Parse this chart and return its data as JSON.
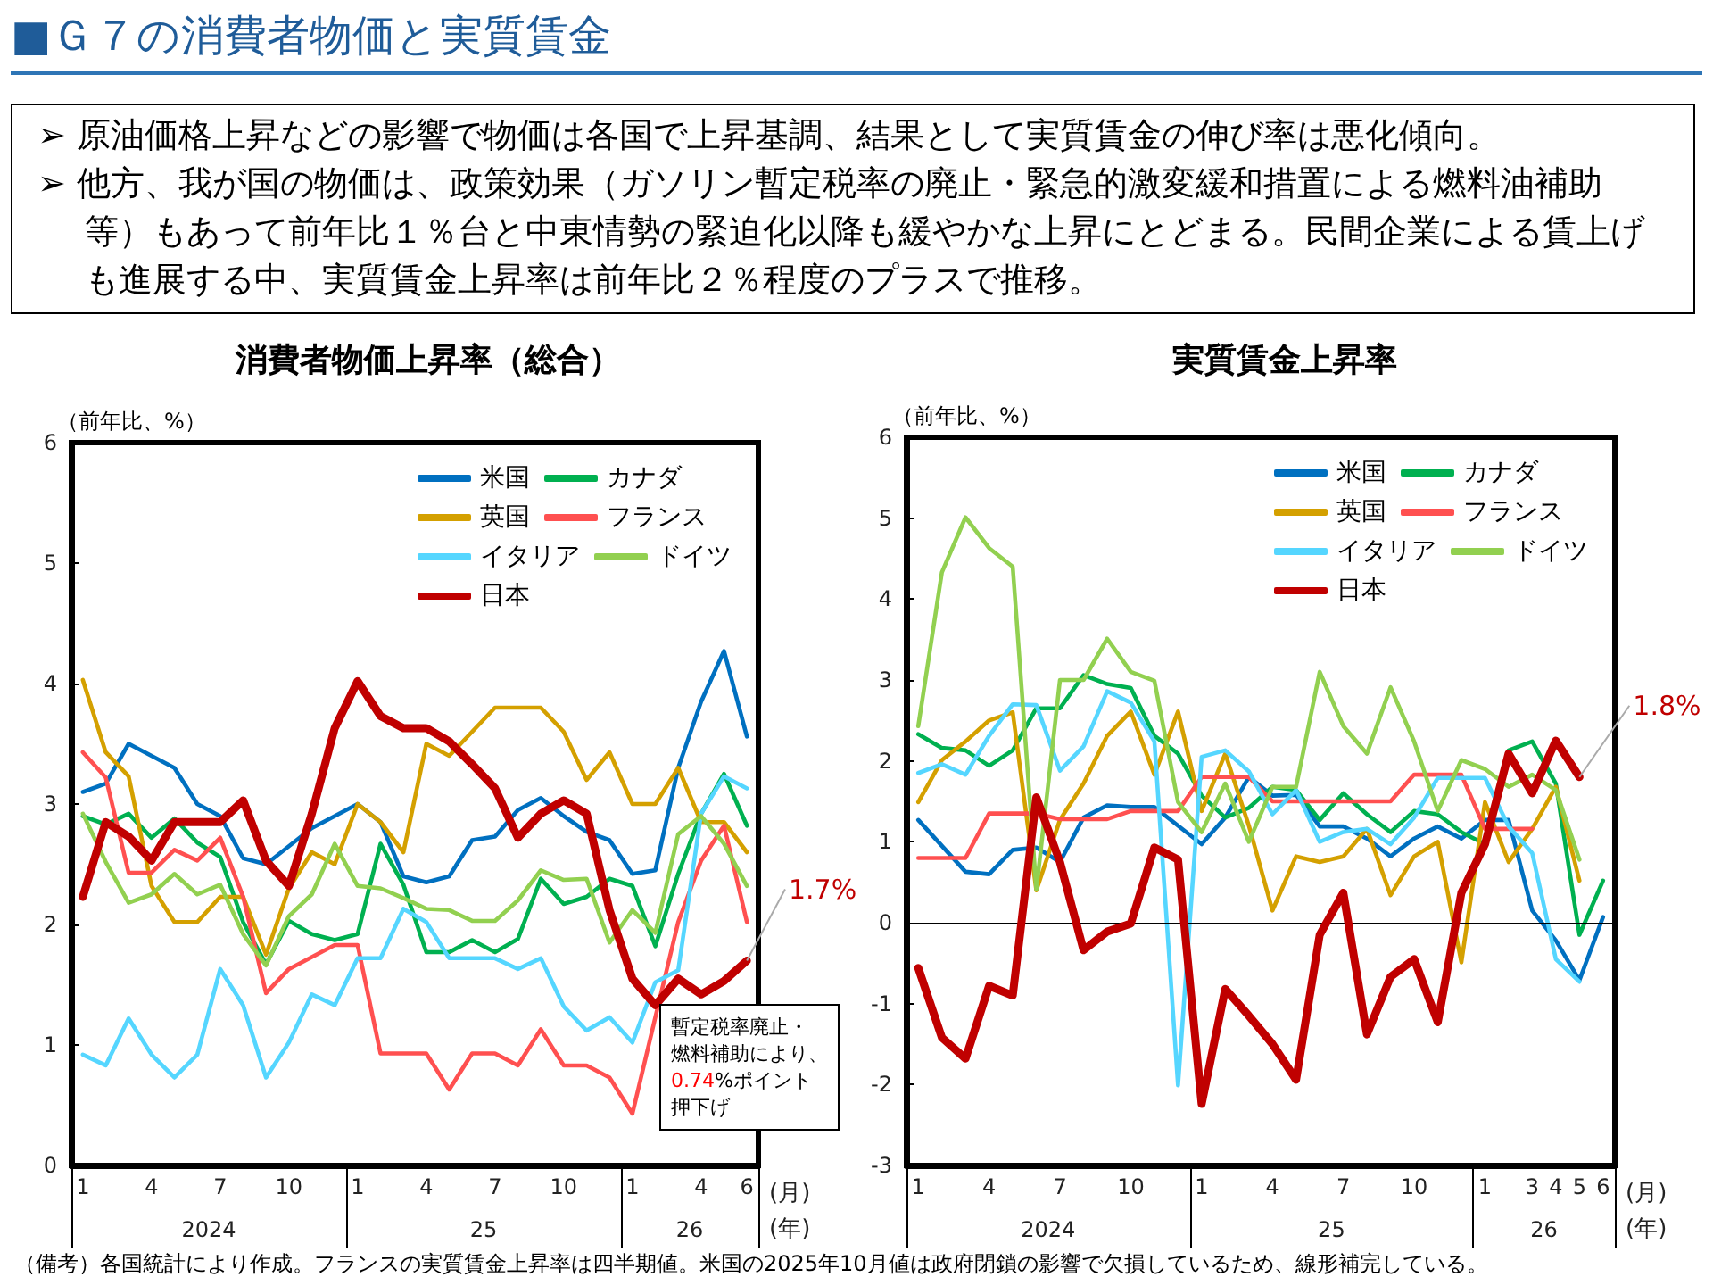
{
  "chart_data": [
    {
      "type": "line",
      "title": "消費者物価上昇率（総合）",
      "ylabel": "（前年比、%）",
      "xlabel": "(月)\n(年)",
      "categories": [
        "1",
        null,
        null,
        "4",
        null,
        null,
        "7",
        null,
        null,
        "10",
        null,
        null,
        "1",
        null,
        null,
        "4",
        null,
        null,
        "7",
        null,
        null,
        "10",
        null,
        null,
        "1",
        null,
        null,
        "4",
        null,
        "6"
      ],
      "series": [
        {
          "name": "米国",
          "color": "#0070c0",
          "values": [
            3.1,
            3.17,
            3.5,
            3.4,
            3.3,
            3.0,
            2.9,
            2.55,
            2.5,
            2.65,
            2.8,
            2.9,
            3.0,
            2.85,
            2.4,
            2.35,
            2.4,
            2.7,
            2.73,
            2.95,
            3.05,
            2.9,
            2.77,
            2.7,
            2.42,
            2.45,
            3.3,
            3.85,
            4.27,
            3.56
          ]
        },
        {
          "name": "カナダ",
          "color": "#00b050",
          "values": [
            2.9,
            2.83,
            2.92,
            2.72,
            2.88,
            2.68,
            2.56,
            2.02,
            1.67,
            2.03,
            1.92,
            1.87,
            1.92,
            2.67,
            2.33,
            1.77,
            1.77,
            1.87,
            1.77,
            1.88,
            2.38,
            2.17,
            2.23,
            2.38,
            2.32,
            1.82,
            2.42,
            2.92,
            3.25,
            2.82
          ]
        },
        {
          "name": "英国",
          "color": "#d4a000",
          "values": [
            4.03,
            3.43,
            3.23,
            2.32,
            2.02,
            2.02,
            2.23,
            2.23,
            1.75,
            2.3,
            2.6,
            2.5,
            3.0,
            2.85,
            2.6,
            3.5,
            3.4,
            3.6,
            3.8,
            3.8,
            3.8,
            3.6,
            3.2,
            3.43,
            3.0,
            3.0,
            3.3,
            2.85,
            2.85,
            2.6
          ]
        },
        {
          "name": "フランス",
          "color": "#ff5050",
          "values": [
            3.43,
            3.22,
            2.43,
            2.43,
            2.62,
            2.53,
            2.72,
            2.23,
            1.43,
            1.63,
            1.73,
            1.83,
            1.83,
            0.93,
            0.93,
            0.93,
            0.63,
            0.93,
            0.93,
            0.83,
            1.13,
            0.83,
            0.83,
            0.73,
            0.43,
            1.23,
            2.02,
            2.53,
            2.82,
            2.02
          ]
        },
        {
          "name": "イタリア",
          "color": "#55d6ff",
          "values": [
            0.92,
            0.83,
            1.22,
            0.92,
            0.73,
            0.92,
            1.63,
            1.33,
            0.73,
            1.02,
            1.42,
            1.33,
            1.72,
            1.72,
            2.13,
            2.02,
            1.72,
            1.72,
            1.72,
            1.63,
            1.72,
            1.32,
            1.12,
            1.23,
            1.02,
            1.52,
            1.62,
            2.92,
            3.23,
            3.13
          ]
        },
        {
          "name": "ドイツ",
          "color": "#92d050",
          "values": [
            2.92,
            2.52,
            2.18,
            2.25,
            2.42,
            2.25,
            2.33,
            1.92,
            1.66,
            2.07,
            2.25,
            2.67,
            2.32,
            2.3,
            2.22,
            2.13,
            2.12,
            2.03,
            2.03,
            2.2,
            2.45,
            2.37,
            2.38,
            1.85,
            2.12,
            1.93,
            2.75,
            2.9,
            2.67,
            2.32
          ]
        },
        {
          "name": "日本",
          "color": "#c00000",
          "values": [
            2.23,
            2.85,
            2.73,
            2.53,
            2.85,
            2.85,
            2.85,
            3.03,
            2.53,
            2.32,
            2.92,
            3.63,
            4.02,
            3.73,
            3.63,
            3.63,
            3.52,
            3.33,
            3.13,
            2.72,
            2.92,
            3.03,
            2.92,
            2.12,
            1.55,
            1.33,
            1.55,
            1.42,
            1.53,
            1.7
          ]
        }
      ],
      "ylim": [
        0,
        6
      ],
      "yticks": [
        0,
        1,
        2,
        3,
        4,
        5,
        6
      ],
      "legend": "top right",
      "annotations": [
        "■Ｇ７の消費者物価と実質賃金",
        "➢ 原油価格上昇などの影響で物価は各国で上昇基調、結果として実質賃金の伸び率は悪化傾向。\n➢ 他方、我が国の物価は、政策効果（ガソリン暫定税率の廃止・緊急的激変緩和措置による燃料油補助等）もあって前年比１％台と中東情勢の緊迫化以降も緩やかな上昇にとどまる。民間企業による賃上げも進展する中、実質賃金上昇率は前年比２％程度のプラスで推移。",
        "暫定税率廃止・",
        "燃料補助により、",
        "0.74%ポイント",
        "押下げ",
        "2024",
        "25",
        "26",
        {
          "text": "1.7%",
          "x": "6",
          "y": 1.7
        }
      ]
    },
    {
      "type": "line",
      "title": "実質賃金上昇率",
      "ylabel": "（前年比、%）",
      "xlabel": "(月)\n(年)",
      "categories": [
        "1",
        null,
        null,
        "4",
        null,
        null,
        "7",
        null,
        null,
        "10",
        null,
        null,
        "1",
        null,
        null,
        "4",
        null,
        null,
        "7",
        null,
        null,
        "10",
        null,
        null,
        "1",
        null,
        "3",
        "4",
        "5",
        "6"
      ],
      "series": [
        {
          "name": "米国",
          "color": "#0070c0",
          "values": [
            1.27,
            0.95,
            0.63,
            0.6,
            0.9,
            0.93,
            0.75,
            1.3,
            1.45,
            1.43,
            1.43,
            1.2,
            0.97,
            1.3,
            1.8,
            1.57,
            1.58,
            1.19,
            1.19,
            1.04,
            0.82,
            1.04,
            1.19,
            1.04,
            1.27,
            1.27,
            0.15,
            -0.22,
            -0.71,
            0.07
          ]
        },
        {
          "name": "カナダ",
          "color": "#00b050",
          "values": [
            2.33,
            2.16,
            2.13,
            1.94,
            2.13,
            2.65,
            2.65,
            3.06,
            2.95,
            2.9,
            2.31,
            2.09,
            1.57,
            1.3,
            1.42,
            1.68,
            1.64,
            1.27,
            1.6,
            1.34,
            1.12,
            1.38,
            1.34,
            1.12,
            0.97,
            2.13,
            2.24,
            1.72,
            -0.15,
            0.52
          ]
        },
        {
          "name": "英国",
          "color": "#d4a000",
          "values": [
            1.49,
            2.01,
            2.24,
            2.5,
            2.6,
            0.4,
            1.27,
            1.72,
            2.31,
            2.61,
            1.83,
            2.61,
            1.38,
            2.09,
            1.2,
            0.15,
            0.82,
            0.75,
            0.82,
            1.16,
            0.34,
            0.82,
            1.0,
            -0.49,
            1.49,
            0.75,
            1.16,
            1.68,
            0.52,
            null
          ]
        },
        {
          "name": "フランス",
          "color": "#ff5050",
          "values": [
            0.8,
            0.8,
            0.8,
            1.35,
            1.35,
            1.35,
            1.28,
            1.28,
            1.28,
            1.38,
            1.38,
            1.38,
            1.8,
            1.8,
            1.8,
            1.5,
            1.5,
            1.5,
            1.5,
            1.5,
            1.5,
            1.83,
            1.83,
            1.83,
            1.16,
            1.16,
            1.16,
            null,
            null,
            null
          ]
        },
        {
          "name": "イタリア",
          "color": "#55d6ff",
          "values": [
            1.85,
            1.96,
            1.83,
            2.31,
            2.7,
            2.69,
            1.88,
            2.18,
            2.86,
            2.72,
            2.24,
            -2.01,
            2.05,
            2.13,
            1.87,
            1.34,
            1.64,
            1.0,
            1.12,
            1.16,
            0.97,
            1.3,
            1.79,
            1.79,
            1.79,
            1.19,
            0.86,
            -0.45,
            -0.73,
            null
          ]
        },
        {
          "name": "ドイツ",
          "color": "#92d050",
          "values": [
            2.43,
            4.33,
            5.01,
            4.63,
            4.4,
            0.41,
            3.0,
            3.0,
            3.51,
            3.1,
            2.99,
            1.49,
            1.12,
            1.72,
            1.0,
            1.68,
            1.68,
            3.1,
            2.43,
            2.09,
            2.91,
            2.24,
            1.38,
            2.01,
            1.9,
            1.68,
            1.83,
            1.64,
            0.78,
            null
          ]
        },
        {
          "name": "日本",
          "color": "#c00000",
          "values": [
            -0.56,
            -1.42,
            -1.68,
            -0.78,
            -0.9,
            1.55,
            0.75,
            -0.34,
            -0.11,
            -0.01,
            0.93,
            0.78,
            -2.24,
            -0.82,
            -1.15,
            -1.5,
            -1.94,
            -0.15,
            0.37,
            -1.38,
            -0.67,
            -0.45,
            -1.23,
            0.37,
            0.97,
            2.09,
            1.6,
            2.25,
            1.8,
            null
          ]
        }
      ],
      "ylim": [
        -3,
        6
      ],
      "yticks": [
        -3,
        -2,
        -1,
        0,
        1,
        2,
        3,
        4,
        5,
        6
      ],
      "legend": "top right",
      "ref_lines": [
        {
          "axis": "y",
          "value": 0,
          "color": "#000000"
        }
      ],
      "annotations": [
        "（備考）各国統計により作成。フランスの実質賃金上昇率は四半期値。米国の2025年10月値は政府閉鎖の影響で欠損しているため、線形補完している。",
        "2024",
        "25",
        "26",
        {
          "text": "1.8%",
          "x": "5",
          "y": 1.8
        }
      ]
    }
  ]
}
